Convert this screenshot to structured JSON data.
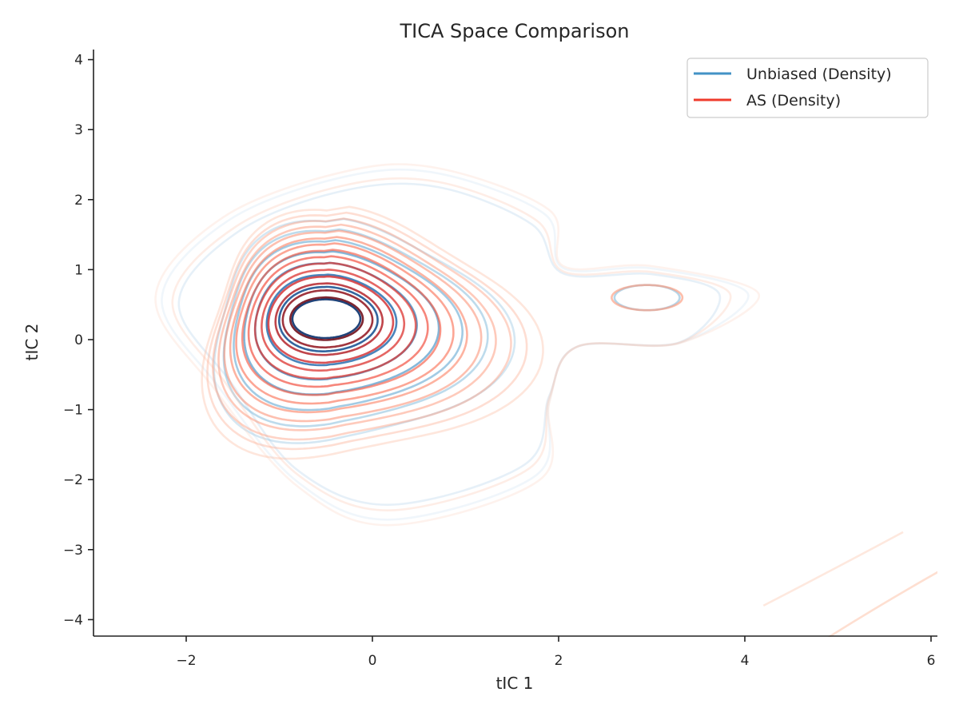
{
  "chart_data": {
    "type": "contour",
    "title": "TICA Space Comparison",
    "xlabel": "tIC 1",
    "ylabel": "tIC 2",
    "xlim": [
      -3,
      6.05
    ],
    "ylim": [
      -4.2,
      4.15
    ],
    "xticks": [
      -2,
      0,
      2,
      4,
      6
    ],
    "yticks": [
      -4,
      -3,
      -2,
      -1,
      0,
      1,
      2,
      3,
      4
    ],
    "xtick_labels": [
      "−2",
      "0",
      "2",
      "4",
      "6"
    ],
    "ytick_labels": [
      "−4",
      "−3",
      "−2",
      "−1",
      "0",
      "1",
      "2",
      "3",
      "4"
    ],
    "grid": false,
    "legend_position": "upper right",
    "series": [
      {
        "name": "Unbiased (Density)",
        "legend_color": "#4292c6",
        "colormap": "Blues",
        "peak": [
          -0.5,
          0.3
        ],
        "secondary_peak": [
          2.95,
          0.6
        ],
        "levels": 10
      },
      {
        "name": "AS (Density)",
        "legend_color": "#ef3b2c",
        "colormap": "Reds",
        "peak": [
          -0.5,
          0.3
        ],
        "secondary_peak": [
          2.95,
          0.6
        ],
        "levels": 17
      }
    ]
  }
}
